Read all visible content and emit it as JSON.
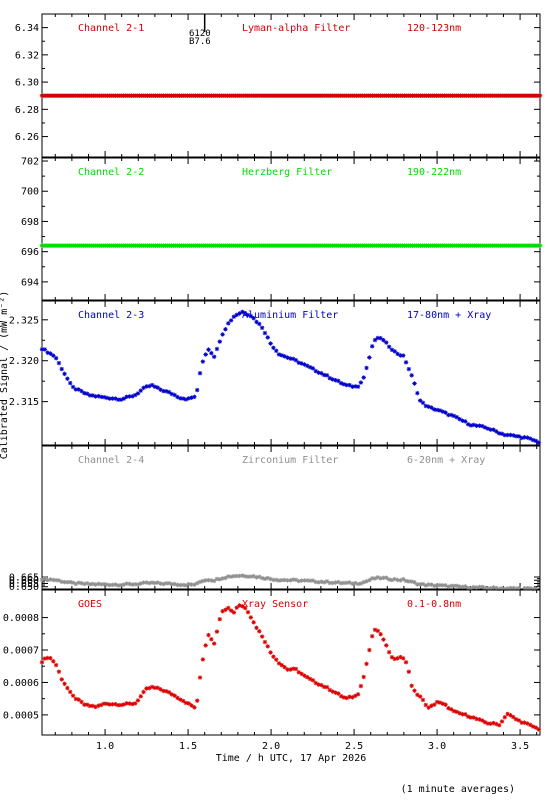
{
  "chart_data": [
    {
      "type": "scatter",
      "channel": "Channel 2-1",
      "filter": "Lyman-alpha Filter",
      "band": "120-123nm",
      "color": "#d40000",
      "ylim": [
        6.245,
        6.35
      ],
      "yticks": [
        6.26,
        6.28,
        6.3,
        6.32,
        6.34
      ],
      "ytick_labels": [
        "6.26",
        "6.28",
        "6.30",
        "6.32",
        "6.34"
      ],
      "annotations": [
        "6120",
        "B7.6"
      ],
      "series": [
        {
          "x": [
            0.62,
            3.62
          ],
          "y": [
            6.29,
            6.29
          ]
        }
      ]
    },
    {
      "type": "scatter",
      "channel": "Channel 2-2",
      "filter": "Herzberg Filter",
      "band": "190-222nm",
      "color": "#00dd00",
      "ylim": [
        692.8,
        702.2
      ],
      "yticks": [
        694,
        696,
        698,
        700,
        702
      ],
      "ytick_labels": [
        "694",
        "696",
        "698",
        "700",
        "702"
      ],
      "series": [
        {
          "x": [
            0.62,
            3.62
          ],
          "y": [
            696.4,
            696.4
          ]
        }
      ]
    },
    {
      "type": "scatter",
      "channel": "Channel 2-3",
      "filter": "Aluminium Filter",
      "band": "17-80nm + Xray",
      "color": "#0000cc",
      "ylim": [
        2.3097,
        2.3273
      ],
      "yticks": [
        2.315,
        2.32,
        2.325
      ],
      "ytick_labels": [
        "2.315",
        "2.320",
        "2.325"
      ],
      "ylabel": "Calibrated Signal / (mW m⁻²)",
      "series": [
        {
          "x": [
            0.62,
            0.7,
            0.8,
            0.9,
            1.0,
            1.1,
            1.18,
            1.24,
            1.28,
            1.33,
            1.4,
            1.45,
            1.5,
            1.55,
            1.58,
            1.62,
            1.66,
            1.7,
            1.74,
            1.78,
            1.83,
            1.88,
            1.95,
            2.0,
            2.05,
            2.15,
            2.25,
            2.35,
            2.45,
            2.52,
            2.56,
            2.6,
            2.62,
            2.66,
            2.7,
            2.75,
            2.8,
            2.85,
            2.9,
            2.95,
            3.0,
            3.1,
            3.2,
            3.3,
            3.4,
            3.5,
            3.55,
            3.62
          ],
          "y": [
            2.3215,
            2.3205,
            2.3168,
            2.3158,
            2.3155,
            2.3153,
            2.3158,
            2.3167,
            2.317,
            2.3165,
            2.316,
            2.3155,
            2.3153,
            2.3157,
            2.3195,
            2.3215,
            2.3205,
            2.323,
            2.3245,
            2.3255,
            2.326,
            2.3255,
            2.324,
            2.322,
            2.3208,
            2.32,
            2.319,
            2.318,
            2.317,
            2.3168,
            2.318,
            2.321,
            2.3225,
            2.3228,
            2.322,
            2.321,
            2.3205,
            2.318,
            2.315,
            2.3143,
            2.314,
            2.3132,
            2.3122,
            2.3118,
            2.311,
            2.3107,
            2.3105,
            2.31
          ]
        }
      ]
    },
    {
      "type": "scatter",
      "channel": "Channel 2-4",
      "filter": "Zirconium Filter",
      "band": "6-20nm + Xray",
      "color": "#909090",
      "ylim": [
        0.64647,
        0.86752
      ],
      "yticks": [
        0.65,
        0.655,
        0.66,
        0.665
      ],
      "ytick_labels": [
        "0.650",
        "0.655",
        "0.660",
        "0.665"
      ],
      "series": [
        {
          "x": [
            0.62,
            0.7,
            0.8,
            0.9,
            1.0,
            1.1,
            1.18,
            1.24,
            1.28,
            1.33,
            1.4,
            1.45,
            1.5,
            1.55,
            1.58,
            1.62,
            1.66,
            1.7,
            1.74,
            1.78,
            1.83,
            1.88,
            1.95,
            2.0,
            2.05,
            2.15,
            2.25,
            2.35,
            2.45,
            2.52,
            2.56,
            2.6,
            2.62,
            2.66,
            2.7,
            2.75,
            2.8,
            2.85,
            2.9,
            2.95,
            3.0,
            3.1,
            3.2,
            3.3,
            3.4,
            3.5,
            3.55,
            3.62
          ],
          "y": [
            0.662,
            0.6605,
            0.6555,
            0.654,
            0.6535,
            0.6532,
            0.654,
            0.6553,
            0.6558,
            0.655,
            0.6545,
            0.6535,
            0.653,
            0.6535,
            0.659,
            0.661,
            0.66,
            0.6635,
            0.6655,
            0.6668,
            0.6672,
            0.6665,
            0.664,
            0.662,
            0.6605,
            0.6598,
            0.6585,
            0.657,
            0.6555,
            0.6552,
            0.657,
            0.661,
            0.663,
            0.6635,
            0.6625,
            0.661,
            0.6605,
            0.657,
            0.6535,
            0.6525,
            0.652,
            0.6505,
            0.649,
            0.6482,
            0.6475,
            0.647,
            0.6468,
            0.6465
          ]
        }
      ]
    },
    {
      "type": "scatter",
      "channel": "GOES",
      "filter": "Xray Sensor",
      "band": "0.1-0.8nm",
      "color": "#dd0000",
      "ylim": [
        0.000438,
        0.000885
      ],
      "yticks": [
        0.0005,
        0.0006,
        0.0007,
        0.0008
      ],
      "ytick_labels": [
        "0.0005",
        "0.0006",
        "0.0007",
        "0.0008"
      ],
      "series": [
        {
          "x": [
            0.62,
            0.66,
            0.7,
            0.74,
            0.8,
            0.88,
            0.95,
            1.0,
            1.1,
            1.18,
            1.22,
            1.25,
            1.28,
            1.33,
            1.4,
            1.45,
            1.5,
            1.55,
            1.58,
            1.62,
            1.66,
            1.7,
            1.74,
            1.78,
            1.8,
            1.85,
            1.9,
            1.95,
            2.0,
            2.05,
            2.1,
            2.15,
            2.2,
            2.25,
            2.35,
            2.45,
            2.52,
            2.56,
            2.6,
            2.62,
            2.66,
            2.7,
            2.74,
            2.78,
            2.82,
            2.85,
            2.9,
            2.95,
            3.0,
            3.05,
            3.1,
            3.2,
            3.3,
            3.38,
            3.42,
            3.48,
            3.55,
            3.62
          ],
          "y": [
            0.000665,
            0.00068,
            0.00066,
            0.00061,
            0.00056,
            0.00053,
            0.000525,
            0.000535,
            0.000532,
            0.000535,
            0.00056,
            0.00058,
            0.000585,
            0.00058,
            0.000565,
            0.00055,
            0.000535,
            0.00052,
            0.00065,
            0.00075,
            0.00072,
            0.00082,
            0.00083,
            0.000815,
            0.00084,
            0.00083,
            0.00078,
            0.00074,
            0.00069,
            0.00066,
            0.00064,
            0.00064,
            0.00062,
            0.000605,
            0.00058,
            0.00055,
            0.00056,
            0.00062,
            0.00072,
            0.000765,
            0.00075,
            0.000705,
            0.00067,
            0.00068,
            0.00066,
            0.00058,
            0.000555,
            0.00052,
            0.00054,
            0.00053,
            0.00051,
            0.000495,
            0.000475,
            0.00047,
            0.000505,
            0.000485,
            0.00047,
            0.000455
          ]
        }
      ]
    }
  ],
  "x_axis": {
    "xlim": [
      0.62,
      3.62
    ],
    "ticks": [
      1.0,
      1.5,
      2.0,
      2.5,
      3.0,
      3.5
    ],
    "tick_labels": [
      "1.0",
      "1.5",
      "2.0",
      "2.5",
      "3.0",
      "3.5"
    ],
    "xlabel": "Time / h UTC, 17 Apr 2026"
  },
  "footer_note": "(1 minute averages)",
  "marker": "asterisk"
}
